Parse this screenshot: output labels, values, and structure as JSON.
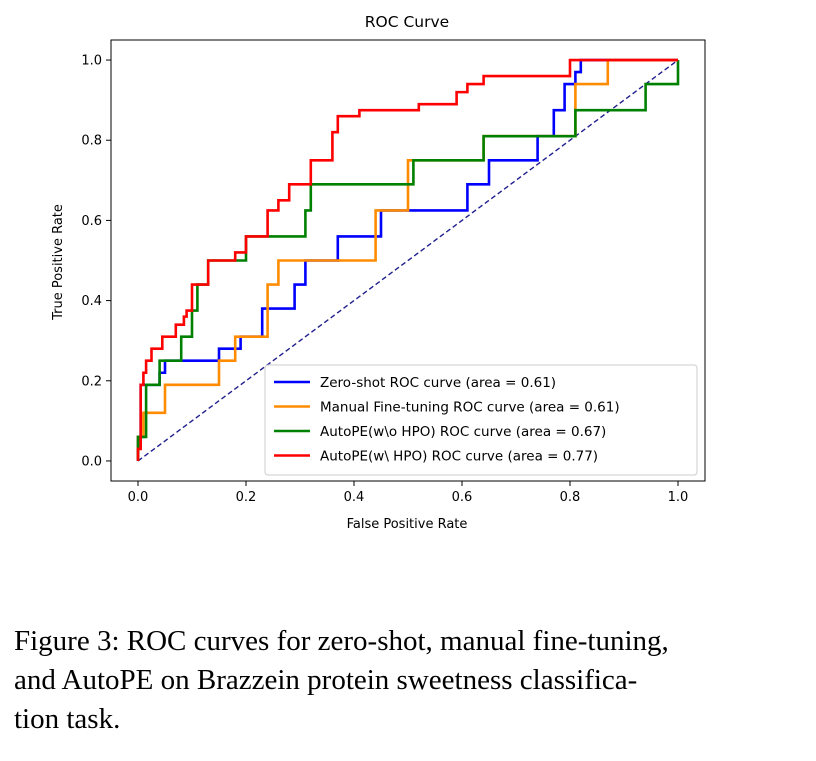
{
  "chart_data": {
    "type": "line",
    "title": "ROC Curve",
    "xlabel": "False Positive Rate",
    "ylabel": "True Positive Rate",
    "xlim": [
      -0.05,
      1.05
    ],
    "ylim": [
      -0.05,
      1.05
    ],
    "xticks": [
      0.0,
      0.2,
      0.4,
      0.6,
      0.8,
      1.0
    ],
    "yticks": [
      0.0,
      0.2,
      0.4,
      0.6,
      0.8,
      1.0
    ],
    "xtick_labels": [
      "0.0",
      "0.2",
      "0.4",
      "0.6",
      "0.8",
      "1.0"
    ],
    "ytick_labels": [
      "0.0",
      "0.2",
      "0.4",
      "0.6",
      "0.8",
      "1.0"
    ],
    "legend_position": "lower-right",
    "diagonal": {
      "x": [
        0,
        1
      ],
      "y": [
        0,
        1
      ],
      "color": "#1f1f8f",
      "style": "dashed"
    },
    "series": [
      {
        "name": "Zero-shot ROC curve (area = 0.61)",
        "color": "#0000ff",
        "x": [
          0,
          0,
          0.005,
          0.005,
          0.04,
          0.04,
          0.05,
          0.05,
          0.15,
          0.15,
          0.19,
          0.19,
          0.23,
          0.23,
          0.24,
          0.24,
          0.29,
          0.29,
          0.31,
          0.31,
          0.37,
          0.37,
          0.45,
          0.45,
          0.61,
          0.61,
          0.65,
          0.65,
          0.74,
          0.74,
          0.77,
          0.77,
          0.79,
          0.79,
          0.81,
          0.81,
          0.82,
          0.82,
          1.0
        ],
        "y": [
          0,
          0.06,
          0.06,
          0.19,
          0.19,
          0.22,
          0.22,
          0.25,
          0.25,
          0.28,
          0.28,
          0.31,
          0.31,
          0.38,
          0.38,
          0.38,
          0.38,
          0.44,
          0.44,
          0.5,
          0.5,
          0.56,
          0.56,
          0.625,
          0.625,
          0.69,
          0.69,
          0.75,
          0.75,
          0.81,
          0.81,
          0.875,
          0.875,
          0.94,
          0.94,
          0.97,
          0.97,
          1.0,
          1.0
        ]
      },
      {
        "name": "Manual Fine-tuning ROC curve (area = 0.61)",
        "color": "#ff8c00",
        "x": [
          0,
          0,
          0.01,
          0.01,
          0.05,
          0.05,
          0.15,
          0.15,
          0.18,
          0.18,
          0.24,
          0.24,
          0.26,
          0.26,
          0.44,
          0.44,
          0.5,
          0.5,
          0.64,
          0.64,
          0.81,
          0.81,
          0.87,
          0.87,
          1.0
        ],
        "y": [
          0,
          0.06,
          0.06,
          0.12,
          0.12,
          0.19,
          0.19,
          0.25,
          0.25,
          0.31,
          0.31,
          0.44,
          0.44,
          0.5,
          0.5,
          0.625,
          0.625,
          0.75,
          0.75,
          0.81,
          0.81,
          0.94,
          0.94,
          1.0,
          1.0
        ]
      },
      {
        "name": "AutoPE(w\\o HPO) ROC curve (area = 0.67)",
        "color": "#008000",
        "x": [
          0,
          0,
          0.015,
          0.015,
          0.04,
          0.04,
          0.08,
          0.08,
          0.1,
          0.1,
          0.11,
          0.11,
          0.13,
          0.13,
          0.2,
          0.2,
          0.24,
          0.24,
          0.31,
          0.31,
          0.32,
          0.32,
          0.34,
          0.34,
          0.51,
          0.51,
          0.53,
          0.53,
          0.64,
          0.64,
          0.75,
          0.75,
          0.81,
          0.81,
          0.94,
          0.94,
          1.0,
          1.0
        ],
        "y": [
          0,
          0.06,
          0.06,
          0.19,
          0.19,
          0.25,
          0.25,
          0.31,
          0.31,
          0.375,
          0.375,
          0.44,
          0.44,
          0.5,
          0.5,
          0.56,
          0.56,
          0.56,
          0.56,
          0.625,
          0.625,
          0.69,
          0.69,
          0.69,
          0.69,
          0.75,
          0.75,
          0.75,
          0.75,
          0.81,
          0.81,
          0.81,
          0.81,
          0.875,
          0.875,
          0.94,
          0.94,
          1.0
        ]
      },
      {
        "name": "AutoPE(w\\ HPO) ROC curve (area = 0.77)",
        "color": "#ff0000",
        "x": [
          0,
          0,
          0.005,
          0.005,
          0.01,
          0.01,
          0.015,
          0.015,
          0.025,
          0.025,
          0.045,
          0.045,
          0.07,
          0.07,
          0.085,
          0.085,
          0.09,
          0.09,
          0.1,
          0.1,
          0.13,
          0.13,
          0.18,
          0.18,
          0.2,
          0.2,
          0.24,
          0.24,
          0.26,
          0.26,
          0.28,
          0.28,
          0.32,
          0.32,
          0.36,
          0.36,
          0.37,
          0.37,
          0.41,
          0.41,
          0.52,
          0.52,
          0.59,
          0.59,
          0.61,
          0.61,
          0.64,
          0.64,
          0.8,
          0.8,
          1.0
        ],
        "y": [
          0,
          0.03,
          0.03,
          0.19,
          0.19,
          0.22,
          0.22,
          0.25,
          0.25,
          0.28,
          0.28,
          0.31,
          0.31,
          0.34,
          0.34,
          0.36,
          0.36,
          0.375,
          0.375,
          0.44,
          0.44,
          0.5,
          0.5,
          0.52,
          0.52,
          0.56,
          0.56,
          0.625,
          0.625,
          0.65,
          0.65,
          0.69,
          0.69,
          0.75,
          0.75,
          0.82,
          0.82,
          0.86,
          0.86,
          0.875,
          0.875,
          0.89,
          0.89,
          0.92,
          0.92,
          0.94,
          0.94,
          0.96,
          0.96,
          1.0,
          1.0
        ]
      }
    ]
  },
  "caption": {
    "line1": "Figure 3: ROC curves for zero-shot, manual fine-tuning,",
    "line2": "and AutoPE on Brazzein protein sweetness classifica-",
    "line3": "tion task."
  }
}
